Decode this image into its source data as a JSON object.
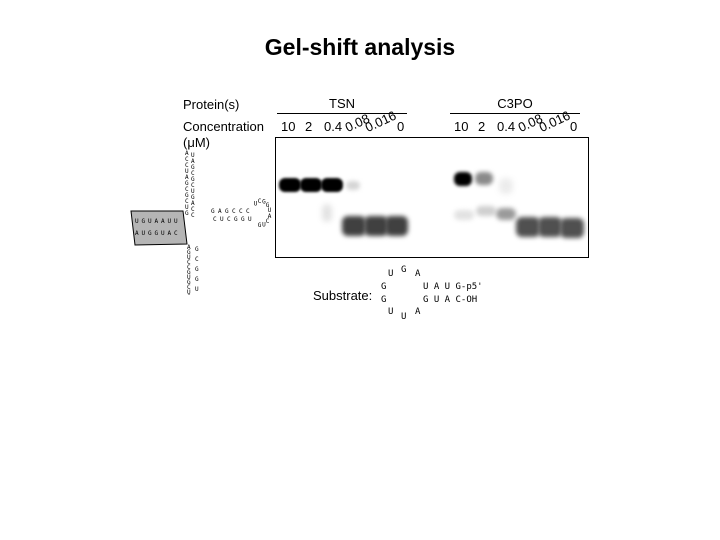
{
  "title": "Gel-shift analysis",
  "labels": {
    "protein": "Protein(s)",
    "concentration": "Concentration",
    "unit": "(μM)",
    "substrate": "Substrate:"
  },
  "groups": [
    {
      "name": "TSN",
      "concentrations": [
        "10",
        "2",
        "0.4",
        "0.08",
        "0.016",
        "0"
      ]
    },
    {
      "name": "C3PO",
      "concentrations": [
        "10",
        "2",
        "0.4",
        "0.08",
        "0.016",
        "0"
      ]
    }
  ],
  "substrate": {
    "loop_top": [
      "U",
      "G",
      "A"
    ],
    "loop_left": [
      "G",
      "G"
    ],
    "loop_bottom": [
      "U",
      "U",
      "A"
    ],
    "strand_top": "U A U G-p5'",
    "strand_bottom": "G U A C-OH"
  },
  "structure_letters": {
    "stem_top": [
      "A",
      "C",
      "C",
      "U",
      "A",
      "G",
      "C",
      "G",
      "C",
      "U",
      "G"
    ],
    "stem_right_loop": [
      "G",
      "A",
      "G",
      "C",
      "C",
      "C",
      "U",
      "C",
      "G",
      "G",
      "U",
      "A",
      "C",
      "U",
      "G"
    ],
    "stem_bottom": [
      "A",
      "G",
      "U",
      "C",
      "C",
      "G",
      "U",
      "G",
      "C",
      "U",
      "G",
      "U",
      "G",
      "G"
    ],
    "box_letters": [
      "U",
      "G",
      "U",
      "A",
      "A",
      "U",
      "U",
      "A",
      "U",
      "G",
      "G",
      "U",
      "A",
      "C"
    ]
  }
}
